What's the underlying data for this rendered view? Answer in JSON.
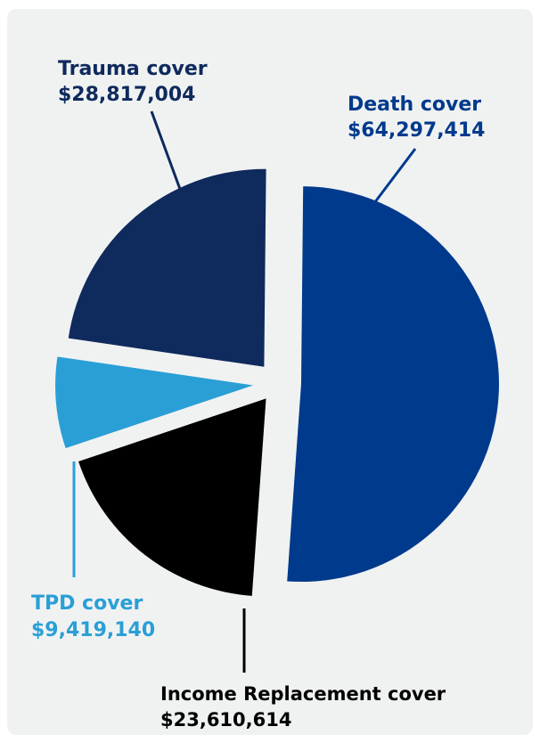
{
  "chart_data": {
    "type": "pie",
    "title": "",
    "exploded": true,
    "slices": [
      {
        "label": "Death cover",
        "value": 64297414,
        "display": "$64,297,414",
        "color": "#003a8c"
      },
      {
        "label": "Income Replacement cover",
        "value": 23610614,
        "display": "$23,610,614",
        "color": "#000000"
      },
      {
        "label": "TPD cover",
        "value": 9419140,
        "display": "$9,419,140",
        "color": "#2a9fd6"
      },
      {
        "label": "Trauma cover",
        "value": 28817004,
        "display": "$28,817,004",
        "color": "#0f2a5c"
      }
    ]
  }
}
